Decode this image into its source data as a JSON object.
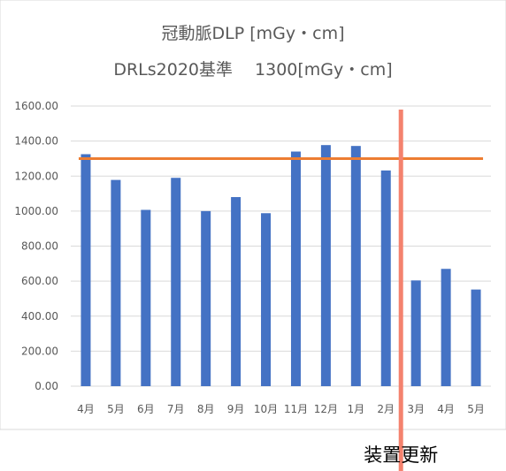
{
  "chart_data": {
    "type": "bar",
    "title": "冠動脈DLP [mGy・cm]",
    "subtitle": "DRLs2020基準　 1300[mGy・cm]",
    "categories": [
      "4月",
      "5月",
      "6月",
      "7月",
      "8月",
      "9月",
      "10月",
      "11月",
      "12月",
      "1月",
      "2月",
      "3月",
      "4月",
      "5月"
    ],
    "values": [
      1325,
      1178,
      1007,
      1190,
      1000,
      1080,
      988,
      1340,
      1377,
      1372,
      1232,
      604,
      670,
      552
    ],
    "ylim": [
      0,
      1600
    ],
    "yticks": [
      "0.00",
      "200.00",
      "400.00",
      "600.00",
      "800.00",
      "1000.00",
      "1200.00",
      "1400.00",
      "1600.00"
    ],
    "grid": true,
    "reference_line": {
      "value": 1300
    },
    "marker_line": {
      "between": [
        "2月",
        "3月"
      ],
      "label": "装置更新"
    },
    "colors": {
      "bar": "#4472C4",
      "reference": "#ED7D31",
      "marker": "#F4826E",
      "grid": "#D9D9D9"
    }
  }
}
